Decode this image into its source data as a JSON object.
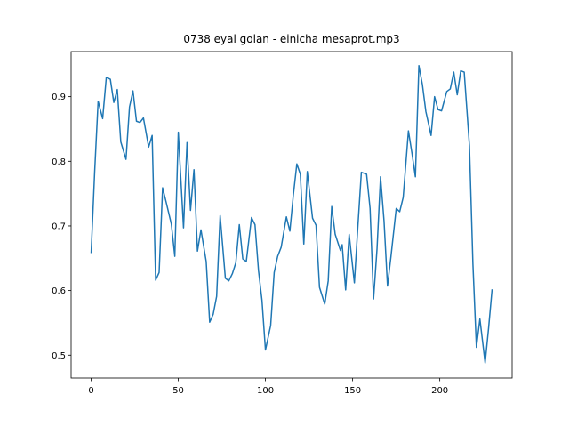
{
  "chart_data": {
    "type": "line",
    "title": "0738 eyal golan - einicha mesaprot.mp3",
    "x": [
      0,
      2,
      4,
      6.6,
      8.7,
      11,
      13,
      15,
      17,
      20,
      22,
      24,
      26,
      28,
      30,
      33,
      35,
      37,
      39,
      41,
      43,
      46,
      48,
      50,
      53,
      55,
      57,
      59,
      61,
      63,
      66,
      68,
      70,
      72,
      74,
      77,
      79,
      81,
      83,
      85,
      87,
      89,
      92,
      94,
      96,
      98,
      100,
      103,
      105,
      107,
      109,
      112,
      114,
      116,
      118,
      120,
      122,
      124,
      127,
      129,
      131,
      134,
      136,
      138,
      140,
      143,
      144,
      146,
      148,
      151,
      153,
      155,
      158,
      160,
      162,
      164,
      166,
      168,
      170,
      172,
      175,
      177,
      179,
      182,
      184,
      186,
      188,
      190,
      192,
      195,
      197,
      199,
      201,
      204,
      206,
      208,
      210,
      212,
      214,
      217,
      219,
      221,
      223,
      226,
      228,
      230
    ],
    "series": [
      {
        "name": "",
        "color": "#1f77b4",
        "values": [
          0.658,
          0.783,
          0.893,
          0.866,
          0.93,
          0.927,
          0.891,
          0.911,
          0.83,
          0.803,
          0.884,
          0.909,
          0.862,
          0.86,
          0.867,
          0.822,
          0.84,
          0.616,
          0.628,
          0.759,
          0.737,
          0.703,
          0.653,
          0.845,
          0.697,
          0.829,
          0.724,
          0.787,
          0.661,
          0.694,
          0.645,
          0.551,
          0.563,
          0.591,
          0.716,
          0.619,
          0.615,
          0.626,
          0.643,
          0.702,
          0.649,
          0.645,
          0.713,
          0.702,
          0.631,
          0.585,
          0.508,
          0.546,
          0.628,
          0.653,
          0.667,
          0.714,
          0.692,
          0.748,
          0.796,
          0.78,
          0.672,
          0.784,
          0.712,
          0.701,
          0.605,
          0.579,
          0.615,
          0.73,
          0.687,
          0.662,
          0.671,
          0.601,
          0.687,
          0.612,
          0.699,
          0.783,
          0.78,
          0.727,
          0.587,
          0.665,
          0.776,
          0.708,
          0.607,
          0.653,
          0.727,
          0.722,
          0.744,
          0.847,
          0.813,
          0.776,
          0.948,
          0.919,
          0.877,
          0.84,
          0.9,
          0.88,
          0.878,
          0.908,
          0.912,
          0.938,
          0.903,
          0.94,
          0.938,
          0.824,
          0.641,
          0.512,
          0.556,
          0.488,
          0.542,
          0.602
        ]
      }
    ],
    "xlim": [
      -11.5,
      241.5
    ],
    "ylim": [
      0.4646,
      0.9697
    ],
    "xticks": [
      0,
      50,
      100,
      150,
      200
    ],
    "yticks": [
      {
        "value": 0.5,
        "label": "0.5"
      },
      {
        "value": 0.6,
        "label": "0.6"
      },
      {
        "value": 0.7,
        "label": "0.7"
      },
      {
        "value": 0.8,
        "label": "0.8"
      },
      {
        "value": 0.9,
        "label": "0.9"
      }
    ]
  }
}
